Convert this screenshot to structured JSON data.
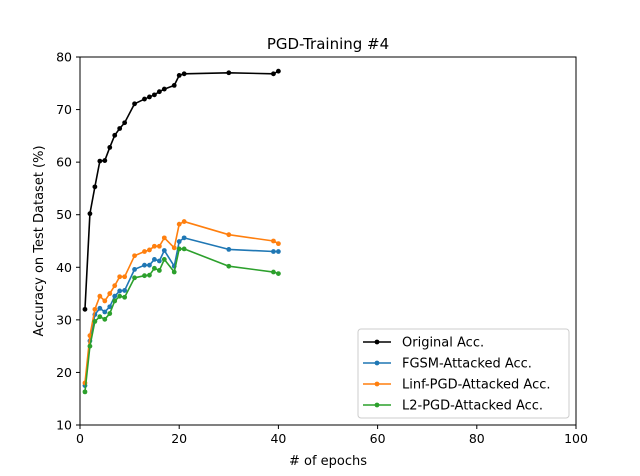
{
  "chart_data": {
    "type": "line",
    "title": "PGD-Training #4",
    "xlabel": "# of epochs",
    "ylabel": "Accuracy on Test Dataset (%)",
    "xlim": [
      0,
      100
    ],
    "ylim": [
      10,
      80
    ],
    "xticks": [
      0,
      20,
      40,
      60,
      80,
      100
    ],
    "yticks": [
      10,
      20,
      30,
      40,
      50,
      60,
      70,
      80
    ],
    "grid": false,
    "legend_position": "lower-right",
    "series": [
      {
        "name": "Original Acc.",
        "color": "#000000",
        "x": [
          1,
          2,
          3,
          4,
          5,
          6,
          7,
          8,
          9,
          11,
          13,
          14,
          15,
          16,
          17,
          19,
          20,
          21,
          30,
          39,
          40
        ],
        "y": [
          32.0,
          50.2,
          55.3,
          60.2,
          60.3,
          62.8,
          65.1,
          66.4,
          67.5,
          71.1,
          72.0,
          72.4,
          72.8,
          73.4,
          73.9,
          74.6,
          76.5,
          76.8,
          77.0,
          76.8,
          77.3
        ]
      },
      {
        "name": "FGSM-Attacked Acc.",
        "color": "#1f77b4",
        "x": [
          1,
          2,
          3,
          4,
          5,
          6,
          7,
          8,
          9,
          11,
          13,
          14,
          15,
          16,
          17,
          19,
          20,
          21,
          30,
          39,
          40
        ],
        "y": [
          17.5,
          26.0,
          31.0,
          32.2,
          31.5,
          32.5,
          34.5,
          35.5,
          35.6,
          39.6,
          40.4,
          40.4,
          41.5,
          41.2,
          43.2,
          40.2,
          44.9,
          45.6,
          43.4,
          43.0,
          43.0
        ]
      },
      {
        "name": "Linf-PGD-Attacked Acc.",
        "color": "#ff7f0e",
        "x": [
          1,
          2,
          3,
          4,
          5,
          6,
          7,
          8,
          9,
          11,
          13,
          14,
          15,
          16,
          17,
          19,
          20,
          21,
          30,
          39,
          40
        ],
        "y": [
          18.0,
          27.0,
          32.0,
          34.5,
          33.6,
          35.0,
          36.5,
          38.2,
          38.2,
          42.2,
          43.0,
          43.3,
          44.0,
          44.0,
          45.6,
          43.7,
          48.2,
          48.7,
          46.2,
          45.0,
          44.5
        ]
      },
      {
        "name": "L2-PGD-Attacked Acc.",
        "color": "#2ca02c",
        "x": [
          1,
          2,
          3,
          4,
          5,
          6,
          7,
          8,
          9,
          11,
          13,
          14,
          15,
          16,
          17,
          19,
          20,
          21,
          30,
          39,
          40
        ],
        "y": [
          16.3,
          25.0,
          29.7,
          30.6,
          30.1,
          31.2,
          33.6,
          34.5,
          34.3,
          38.0,
          38.4,
          38.5,
          39.8,
          39.4,
          41.5,
          39.1,
          43.5,
          43.5,
          40.2,
          39.1,
          38.8
        ]
      }
    ]
  }
}
